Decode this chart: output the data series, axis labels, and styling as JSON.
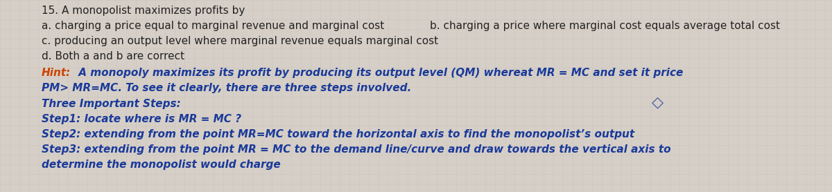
{
  "background_color": "#d6cfc7",
  "question_number": "15.",
  "question_text": " A monopolist maximizes profits by",
  "answer_a": "a. charging a price equal to marginal revenue and marginal cost",
  "answer_b": "b. charging a price where marginal cost equals average total cost",
  "answer_c": "c. producing an output level where marginal revenue equals marginal cost",
  "answer_d": "d. Both a and b are correct",
  "hint_label": "Hint:",
  "hint_line1": " A monopoly maximizes its profit by producing its output level (QM) whereat MR = MC and set it price",
  "hint_line2": "PM> MR=MC. To see it clearly, there are three steps involved.",
  "three_steps_label": "Three Important Steps:",
  "step1": "Step1: locate where is MR = MC ?",
  "step2": "Step2: extending from the point MR=MC toward the horizontal axis to find the monopolist’s output",
  "step3": "Step3: extending from the point MR = MC to the demand line/curve and draw towards the vertical axis to",
  "step3_cont": "determine the monopolist would charge",
  "text_color_black": "#222222",
  "text_color_hint_orange": "#cc4400",
  "text_color_blue": "#1a3a9a",
  "font_size_question": 11.0,
  "font_size_hint": 11.0
}
